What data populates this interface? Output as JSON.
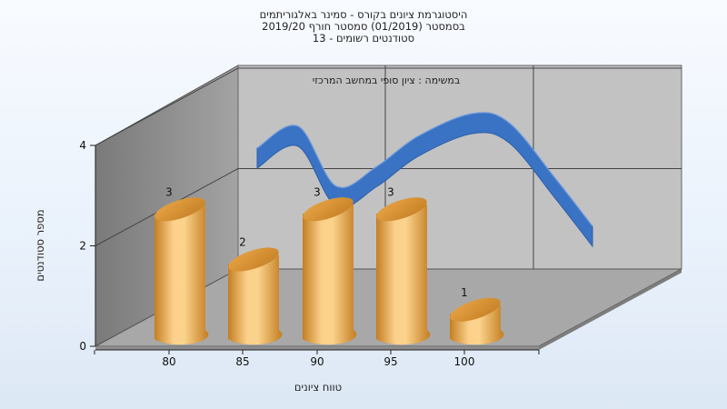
{
  "chart_data": {
    "type": "bar",
    "title_lines": [
      "היסטוגרמת ציונים בקורס - סמינר באלגוריתמים",
      "בסמסטר  (01/2019)  סמסטר חורף 2019/20",
      "סטודנטים רשומים - 13"
    ],
    "subtitle": "במשימה : ציון סופי במחשב המרכזי",
    "xlabel": "טווח ציונים",
    "ylabel": "מספר סטודנטים",
    "categories": [
      "80",
      "85",
      "90",
      "95",
      "100"
    ],
    "values": [
      3,
      2,
      3,
      3,
      1
    ],
    "yticks": [
      0,
      2,
      4
    ],
    "ylim": [
      0,
      4
    ],
    "trend_curve": true,
    "colors": {
      "bar_light": "#fbd38c",
      "bar_dark": "#c47e22",
      "curve": "#3a72c4",
      "back_wall": "#c0c0c0",
      "side_wall": "#909090",
      "floor": "#a6a6a6"
    }
  }
}
